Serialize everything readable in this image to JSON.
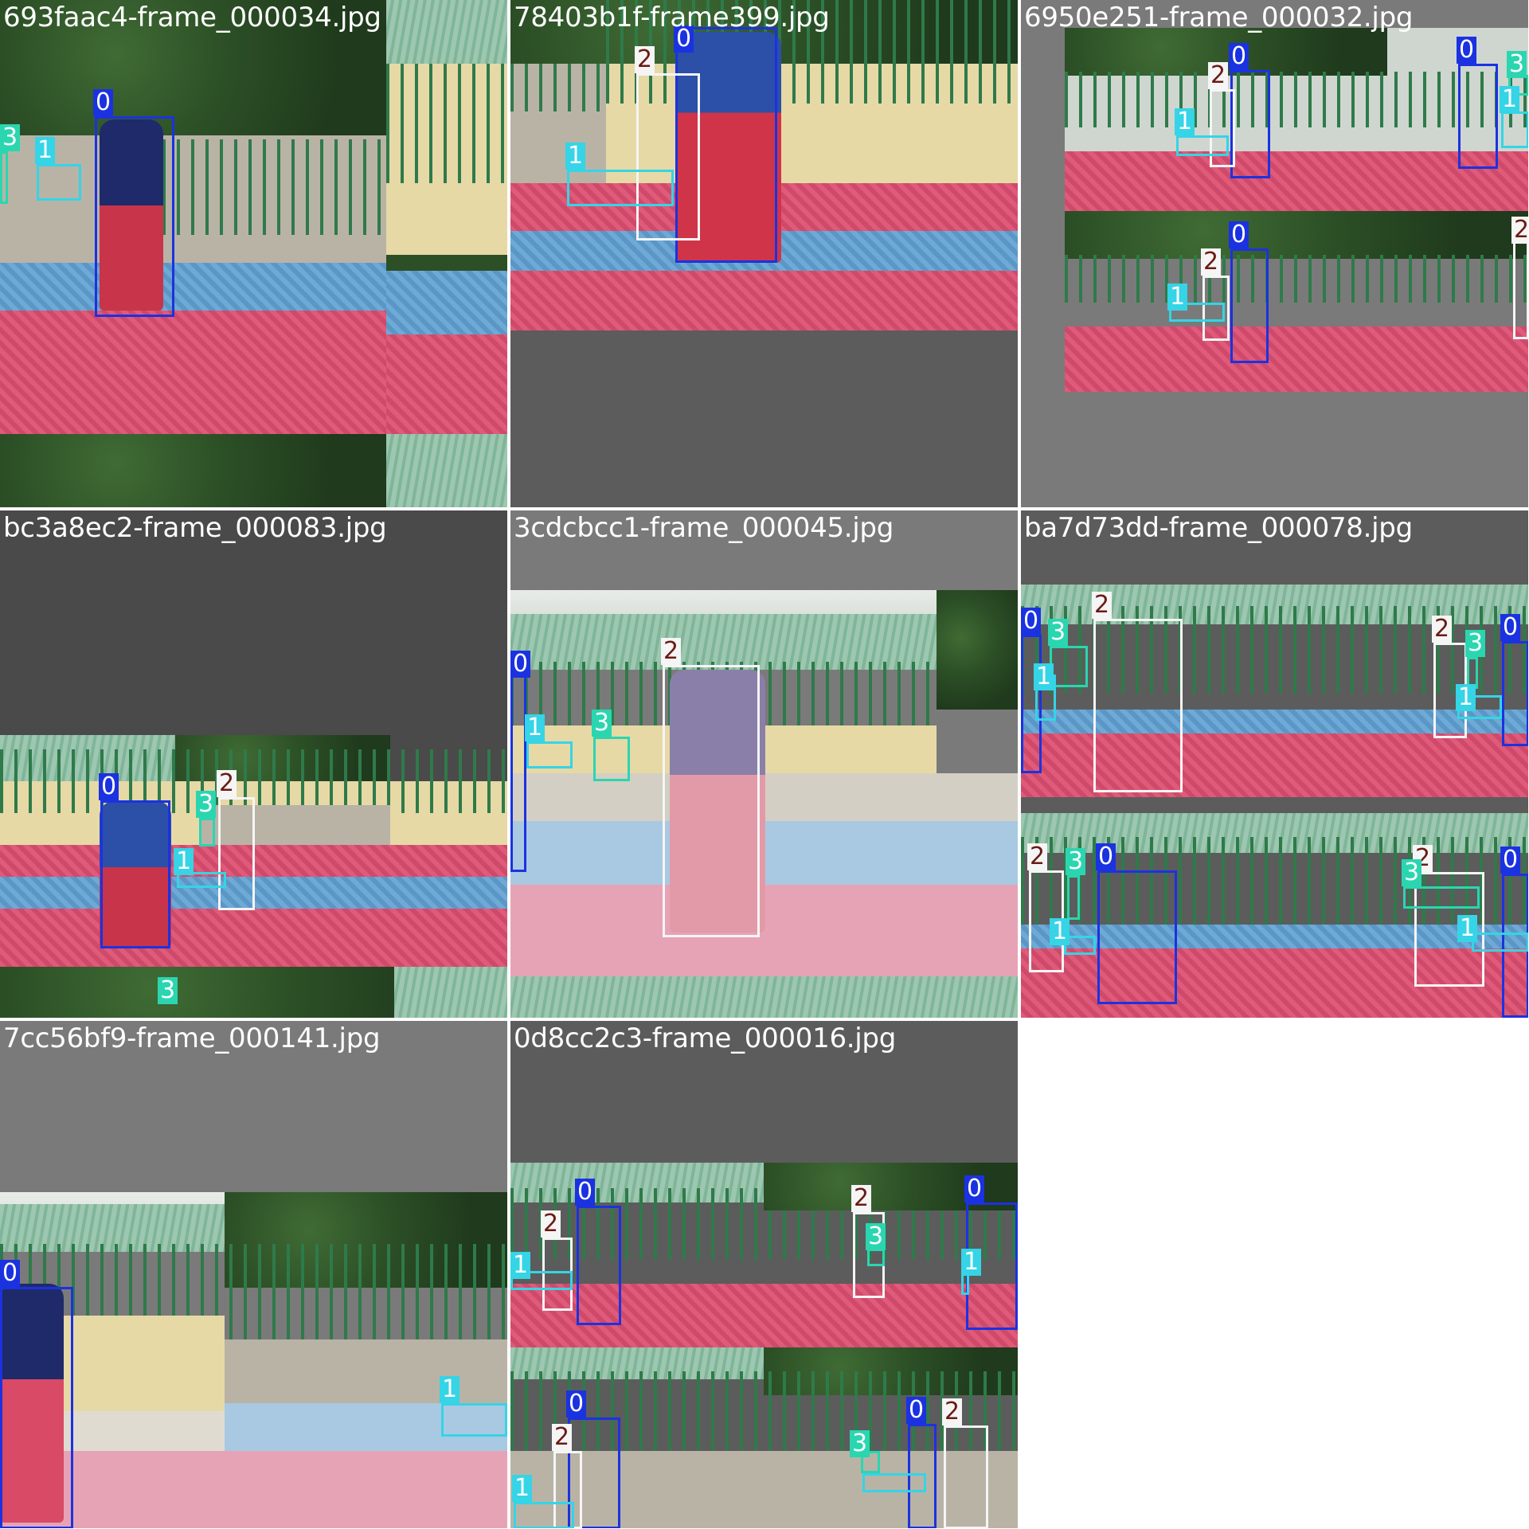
{
  "tiles": [
    {
      "filename": "693faac4-frame_000034.jpg"
    },
    {
      "filename": "78403b1f-frame399.jpg"
    },
    {
      "filename": "6950e251-frame_000032.jpg"
    },
    {
      "filename": "bc3a8ec2-frame_000083.jpg"
    },
    {
      "filename": "3cdcbcc1-frame_000045.jpg"
    },
    {
      "filename": "ba7d73dd-frame_000078.jpg"
    },
    {
      "filename": "7cc56bf9-frame_000141.jpg"
    },
    {
      "filename": "0d8cc2c3-frame_000016.jpg"
    }
  ],
  "classes": [
    "0",
    "1",
    "2",
    "3"
  ],
  "class_colors": {
    "0": "#1b32e0",
    "1": "#35d4e6",
    "2": "#f5f5f5",
    "3": "#2ad6b0"
  },
  "label_text_colors": {
    "2": "#6b1a14"
  }
}
